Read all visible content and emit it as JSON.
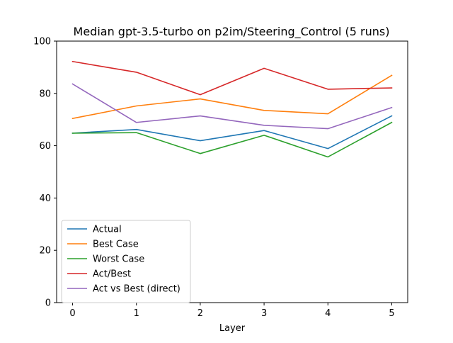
{
  "chart_data": {
    "type": "line",
    "title": "Median gpt-3.5-turbo on p2im/Steering_Control (5 runs)",
    "xlabel": "Layer",
    "ylabel": "",
    "xlim": [
      -0.25,
      5.25
    ],
    "ylim": [
      0,
      100
    ],
    "x": [
      0,
      1,
      2,
      3,
      4,
      5
    ],
    "xticks": [
      "0",
      "1",
      "2",
      "3",
      "4",
      "5"
    ],
    "yticks": [
      "0",
      "20",
      "40",
      "60",
      "80",
      "100"
    ],
    "grid": false,
    "legend_position": "lower-left",
    "series": [
      {
        "name": "Actual",
        "color": "#1f77b4",
        "values": [
          64.8,
          66.2,
          61.9,
          65.8,
          58.9,
          71.4
        ]
      },
      {
        "name": "Best Case",
        "color": "#ff7f0e",
        "values": [
          70.4,
          75.2,
          77.9,
          73.5,
          72.2,
          86.9
        ]
      },
      {
        "name": "Worst Case",
        "color": "#2ca02c",
        "values": [
          64.8,
          65.0,
          57.0,
          64.0,
          55.7,
          68.9
        ]
      },
      {
        "name": "Act/Best",
        "color": "#d62728",
        "values": [
          92.2,
          88.1,
          79.5,
          89.6,
          81.6,
          82.1
        ]
      },
      {
        "name": "Act vs Best (direct)",
        "color": "#9467bd",
        "values": [
          83.6,
          68.9,
          71.4,
          67.8,
          66.5,
          74.6
        ]
      }
    ]
  }
}
